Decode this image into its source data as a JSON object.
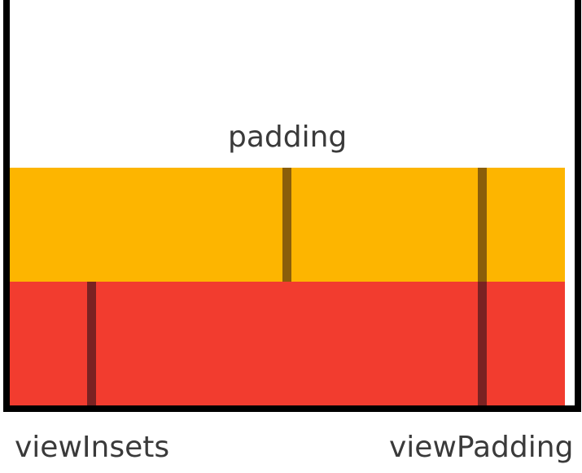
{
  "labels": {
    "padding": "padding",
    "view_insets": "viewInsets",
    "view_padding": "viewPadding"
  },
  "colors": {
    "padding_band": "#FDB500",
    "insets_band": "#F23C2F",
    "padding_marker": "#8A5E0A",
    "insets_marker": "#7A2222",
    "frame": "#000000",
    "text": "#3A3A3A"
  }
}
